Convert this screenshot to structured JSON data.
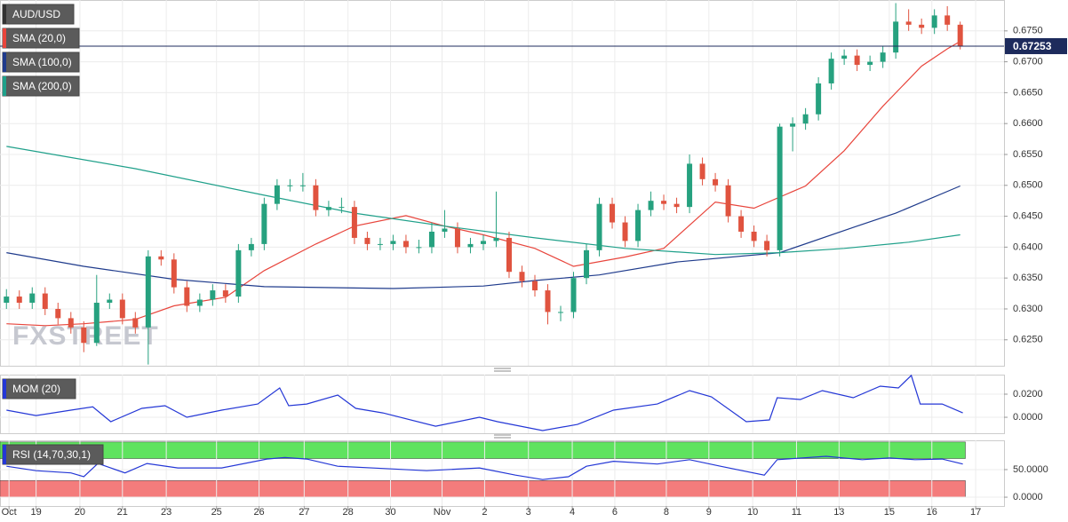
{
  "chart_data": [
    {
      "type": "candlestick",
      "name": "AUD/USD",
      "watermark": "FXSTREET",
      "xlim": [
        -0.5,
        77.4
      ],
      "ylim": [
        0.6208,
        0.68
      ],
      "yticks": [
        {
          "value": 0.625,
          "label": "0.6250"
        },
        {
          "value": 0.63,
          "label": "0.6300"
        },
        {
          "value": 0.635,
          "label": "0.6350"
        },
        {
          "value": 0.64,
          "label": "0.6400"
        },
        {
          "value": 0.645,
          "label": "0.6450"
        },
        {
          "value": 0.65,
          "label": "0.6500"
        },
        {
          "value": 0.655,
          "label": "0.6550"
        },
        {
          "value": 0.66,
          "label": "0.6600"
        },
        {
          "value": 0.665,
          "label": "0.6650"
        },
        {
          "value": 0.67,
          "label": "0.6700"
        },
        {
          "value": 0.675,
          "label": "0.6750"
        }
      ],
      "last": 0.67253,
      "last_color": "#1d2b5c",
      "up_color": "#26a17f",
      "down_color": "#e0533f",
      "grid": true,
      "open": [
        0.631,
        0.632,
        0.631,
        0.6325,
        0.63,
        0.6285,
        0.627,
        0.6245,
        0.631,
        0.6315,
        0.6285,
        0.627,
        0.6385,
        0.638,
        0.6335,
        0.6305,
        0.6315,
        0.633,
        0.632,
        0.6395,
        0.6405,
        0.647,
        0.65,
        0.65,
        0.65,
        0.646,
        0.6465,
        0.6465,
        0.6415,
        0.6405,
        0.6405,
        0.641,
        0.64,
        0.64,
        0.6425,
        0.643,
        0.64,
        0.6405,
        0.641,
        0.6415,
        0.636,
        0.6345,
        0.633,
        0.6295,
        0.6295,
        0.635,
        0.6395,
        0.647,
        0.644,
        0.641,
        0.646,
        0.6475,
        0.647,
        0.6465,
        0.6535,
        0.651,
        0.65,
        0.645,
        0.6425,
        0.641,
        0.6395,
        0.6595,
        0.66,
        0.6615,
        0.6665,
        0.6705,
        0.671,
        0.6695,
        0.67,
        0.6715,
        0.6765,
        0.676,
        0.6755,
        0.6775,
        0.676
      ],
      "high": [
        0.6332,
        0.633,
        0.6335,
        0.6335,
        0.631,
        0.6295,
        0.628,
        0.6355,
        0.6325,
        0.6325,
        0.6295,
        0.6395,
        0.6395,
        0.639,
        0.6345,
        0.6325,
        0.634,
        0.634,
        0.6405,
        0.6415,
        0.648,
        0.651,
        0.651,
        0.652,
        0.651,
        0.6475,
        0.648,
        0.6475,
        0.6425,
        0.6415,
        0.642,
        0.642,
        0.6412,
        0.644,
        0.646,
        0.644,
        0.6415,
        0.642,
        0.649,
        0.6425,
        0.637,
        0.6355,
        0.634,
        0.6305,
        0.636,
        0.6405,
        0.648,
        0.648,
        0.645,
        0.647,
        0.649,
        0.6485,
        0.648,
        0.655,
        0.6545,
        0.652,
        0.651,
        0.646,
        0.6435,
        0.642,
        0.66,
        0.661,
        0.6625,
        0.6675,
        0.6715,
        0.672,
        0.672,
        0.671,
        0.6725,
        0.6795,
        0.6785,
        0.677,
        0.6785,
        0.679,
        0.6765
      ],
      "low": [
        0.63,
        0.63,
        0.63,
        0.629,
        0.6275,
        0.626,
        0.623,
        0.624,
        0.63,
        0.6275,
        0.626,
        0.621,
        0.637,
        0.6325,
        0.6295,
        0.6295,
        0.6305,
        0.631,
        0.631,
        0.6385,
        0.6395,
        0.646,
        0.649,
        0.649,
        0.645,
        0.645,
        0.6455,
        0.6405,
        0.6395,
        0.6395,
        0.6395,
        0.639,
        0.639,
        0.639,
        0.6415,
        0.639,
        0.639,
        0.6395,
        0.64,
        0.635,
        0.6335,
        0.632,
        0.6275,
        0.628,
        0.6285,
        0.634,
        0.6385,
        0.643,
        0.64,
        0.64,
        0.645,
        0.646,
        0.6455,
        0.6455,
        0.65,
        0.649,
        0.644,
        0.6415,
        0.64,
        0.6385,
        0.6385,
        0.6555,
        0.659,
        0.6605,
        0.6655,
        0.6695,
        0.6685,
        0.6685,
        0.669,
        0.6705,
        0.675,
        0.6745,
        0.6745,
        0.675,
        0.672
      ],
      "close": [
        0.632,
        0.631,
        0.6325,
        0.63,
        0.6285,
        0.627,
        0.6245,
        0.631,
        0.6315,
        0.6285,
        0.627,
        0.6385,
        0.638,
        0.6335,
        0.6305,
        0.6315,
        0.633,
        0.632,
        0.6395,
        0.6405,
        0.647,
        0.65,
        0.65,
        0.65,
        0.646,
        0.6465,
        0.6465,
        0.6415,
        0.6405,
        0.6405,
        0.641,
        0.64,
        0.64,
        0.6425,
        0.643,
        0.64,
        0.6405,
        0.641,
        0.6415,
        0.636,
        0.6345,
        0.633,
        0.6295,
        0.6295,
        0.635,
        0.6395,
        0.647,
        0.644,
        0.641,
        0.646,
        0.6475,
        0.647,
        0.6465,
        0.6535,
        0.651,
        0.65,
        0.645,
        0.6425,
        0.641,
        0.6395,
        0.6595,
        0.66,
        0.6615,
        0.6665,
        0.6705,
        0.671,
        0.6695,
        0.67,
        0.6715,
        0.6765,
        0.676,
        0.6755,
        0.6775,
        0.676,
        0.6725
      ],
      "series": [
        {
          "name": "SMA (20,0)",
          "color": "#e8453c",
          "x": [
            0,
            3,
            6,
            10,
            13,
            17,
            20,
            24,
            27,
            31,
            34,
            37,
            41,
            44,
            48,
            51,
            55,
            58,
            62,
            65,
            68,
            71,
            73,
            74
          ],
          "values": [
            0.6276,
            0.6273,
            0.6276,
            0.6283,
            0.6305,
            0.6319,
            0.6362,
            0.6405,
            0.6434,
            0.6451,
            0.6434,
            0.642,
            0.6398,
            0.6369,
            0.6384,
            0.6398,
            0.6473,
            0.6463,
            0.6499,
            0.6556,
            0.6628,
            0.6693,
            0.6721,
            0.6733
          ]
        },
        {
          "name": "SMA (100,0)",
          "color": "#1f3b8c",
          "x": [
            0,
            6,
            13,
            20,
            30,
            37,
            41,
            46,
            52,
            60,
            66,
            69,
            74
          ],
          "values": [
            0.6391,
            0.6369,
            0.6348,
            0.6336,
            0.6333,
            0.6337,
            0.6346,
            0.6355,
            0.6376,
            0.6391,
            0.6434,
            0.6455,
            0.6499
          ]
        },
        {
          "name": "SMA (200,0)",
          "color": "#1fa08a",
          "x": [
            0,
            10,
            20,
            27,
            34,
            41,
            48,
            55,
            60,
            65,
            70,
            74
          ],
          "values": [
            0.6563,
            0.6527,
            0.6484,
            0.6455,
            0.6434,
            0.6415,
            0.6398,
            0.6388,
            0.6391,
            0.6398,
            0.6408,
            0.642
          ]
        }
      ]
    },
    {
      "type": "line",
      "xlim": [
        -0.5,
        77.4
      ],
      "ylim": [
        -0.0138,
        0.0369
      ],
      "yticks": [
        {
          "value": 0,
          "label": "0.0000"
        },
        {
          "value": 0.02,
          "label": "0.0200"
        }
      ],
      "grid": true,
      "series": [
        {
          "name": "MOM (20)",
          "color": "#2437d6",
          "x": [
            0,
            2.3,
            5,
            6.7,
            8.1,
            10.5,
            12.3,
            14,
            16.7,
            19.5,
            21.2,
            21.9,
            23.3,
            25.7,
            27.1,
            29.2,
            33.3,
            36.7,
            38.1,
            41.6,
            44.3,
            47.1,
            50.5,
            53,
            54.7,
            57.4,
            59.2,
            59.8,
            61.6,
            63.3,
            65.7,
            67.8,
            69.2,
            70.2,
            70.9,
            72.6,
            74.2
          ],
          "values": [
            0.0062,
            0.0015,
            0.0062,
            0.009,
            -0.0038,
            0.0077,
            0.01,
            0,
            0.0062,
            0.0115,
            0.0254,
            0.01,
            0.0115,
            0.0192,
            0.0077,
            0.0038,
            -0.0077,
            0,
            -0.0038,
            -0.0115,
            -0.0062,
            0.0062,
            0.0115,
            0.0231,
            0.0177,
            -0.0038,
            -0.0023,
            0.0169,
            0.0154,
            0.0231,
            0.0169,
            0.0269,
            0.0254,
            0.0362,
            0.0115,
            0.0115,
            0.0038
          ]
        }
      ]
    },
    {
      "type": "line",
      "xlim": [
        -0.5,
        77.4
      ],
      "ylim": [
        -16,
        103
      ],
      "yticks": [
        {
          "value": 0,
          "label": "0.0000"
        },
        {
          "value": 50,
          "label": "50.0000"
        }
      ],
      "grid": true,
      "bands": [
        {
          "from": 70,
          "to": 100,
          "color": "#5fe35f"
        },
        {
          "from": 0,
          "to": 30,
          "color": "#f47c7c"
        }
      ],
      "xticks": [
        {
          "value": 0.2,
          "label": "Oct"
        },
        {
          "value": 2.3,
          "label": "19"
        },
        {
          "value": 5.7,
          "label": "20"
        },
        {
          "value": 9,
          "label": "21"
        },
        {
          "value": 12.4,
          "label": "23"
        },
        {
          "value": 16.3,
          "label": "25"
        },
        {
          "value": 19.6,
          "label": "26"
        },
        {
          "value": 23.1,
          "label": "27"
        },
        {
          "value": 26.5,
          "label": "28"
        },
        {
          "value": 29.8,
          "label": "30"
        },
        {
          "value": 33.8,
          "label": "Nov"
        },
        {
          "value": 37.1,
          "label": "2"
        },
        {
          "value": 40.5,
          "label": "3"
        },
        {
          "value": 43.9,
          "label": "4"
        },
        {
          "value": 47.2,
          "label": "6"
        },
        {
          "value": 51.2,
          "label": "8"
        },
        {
          "value": 54.5,
          "label": "9"
        },
        {
          "value": 57.9,
          "label": "10"
        },
        {
          "value": 61.3,
          "label": "11"
        },
        {
          "value": 64.6,
          "label": "13"
        },
        {
          "value": 68.5,
          "label": "15"
        },
        {
          "value": 71.8,
          "label": "16"
        },
        {
          "value": 75.2,
          "label": "17"
        }
      ],
      "series": [
        {
          "name": "RSI (14,70,30,1)",
          "color": "#2437d6",
          "x": [
            0,
            2.3,
            5,
            6,
            7.1,
            9.2,
            10.9,
            13.3,
            16.7,
            20.2,
            21.6,
            23.3,
            25.7,
            29.2,
            32.6,
            36.7,
            39.5,
            41.6,
            43.6,
            45,
            47.1,
            50.5,
            53,
            55.4,
            58.8,
            59.8,
            63.6,
            66.4,
            68.5,
            70.5,
            72.6,
            74.2
          ],
          "values": [
            56,
            48,
            44,
            37,
            61,
            44,
            61,
            53,
            53,
            69,
            72,
            69,
            56,
            52,
            48,
            53,
            40,
            32,
            37,
            56,
            65,
            60,
            68,
            56,
            40,
            68,
            74,
            68,
            71,
            68,
            69,
            60
          ]
        }
      ]
    }
  ]
}
